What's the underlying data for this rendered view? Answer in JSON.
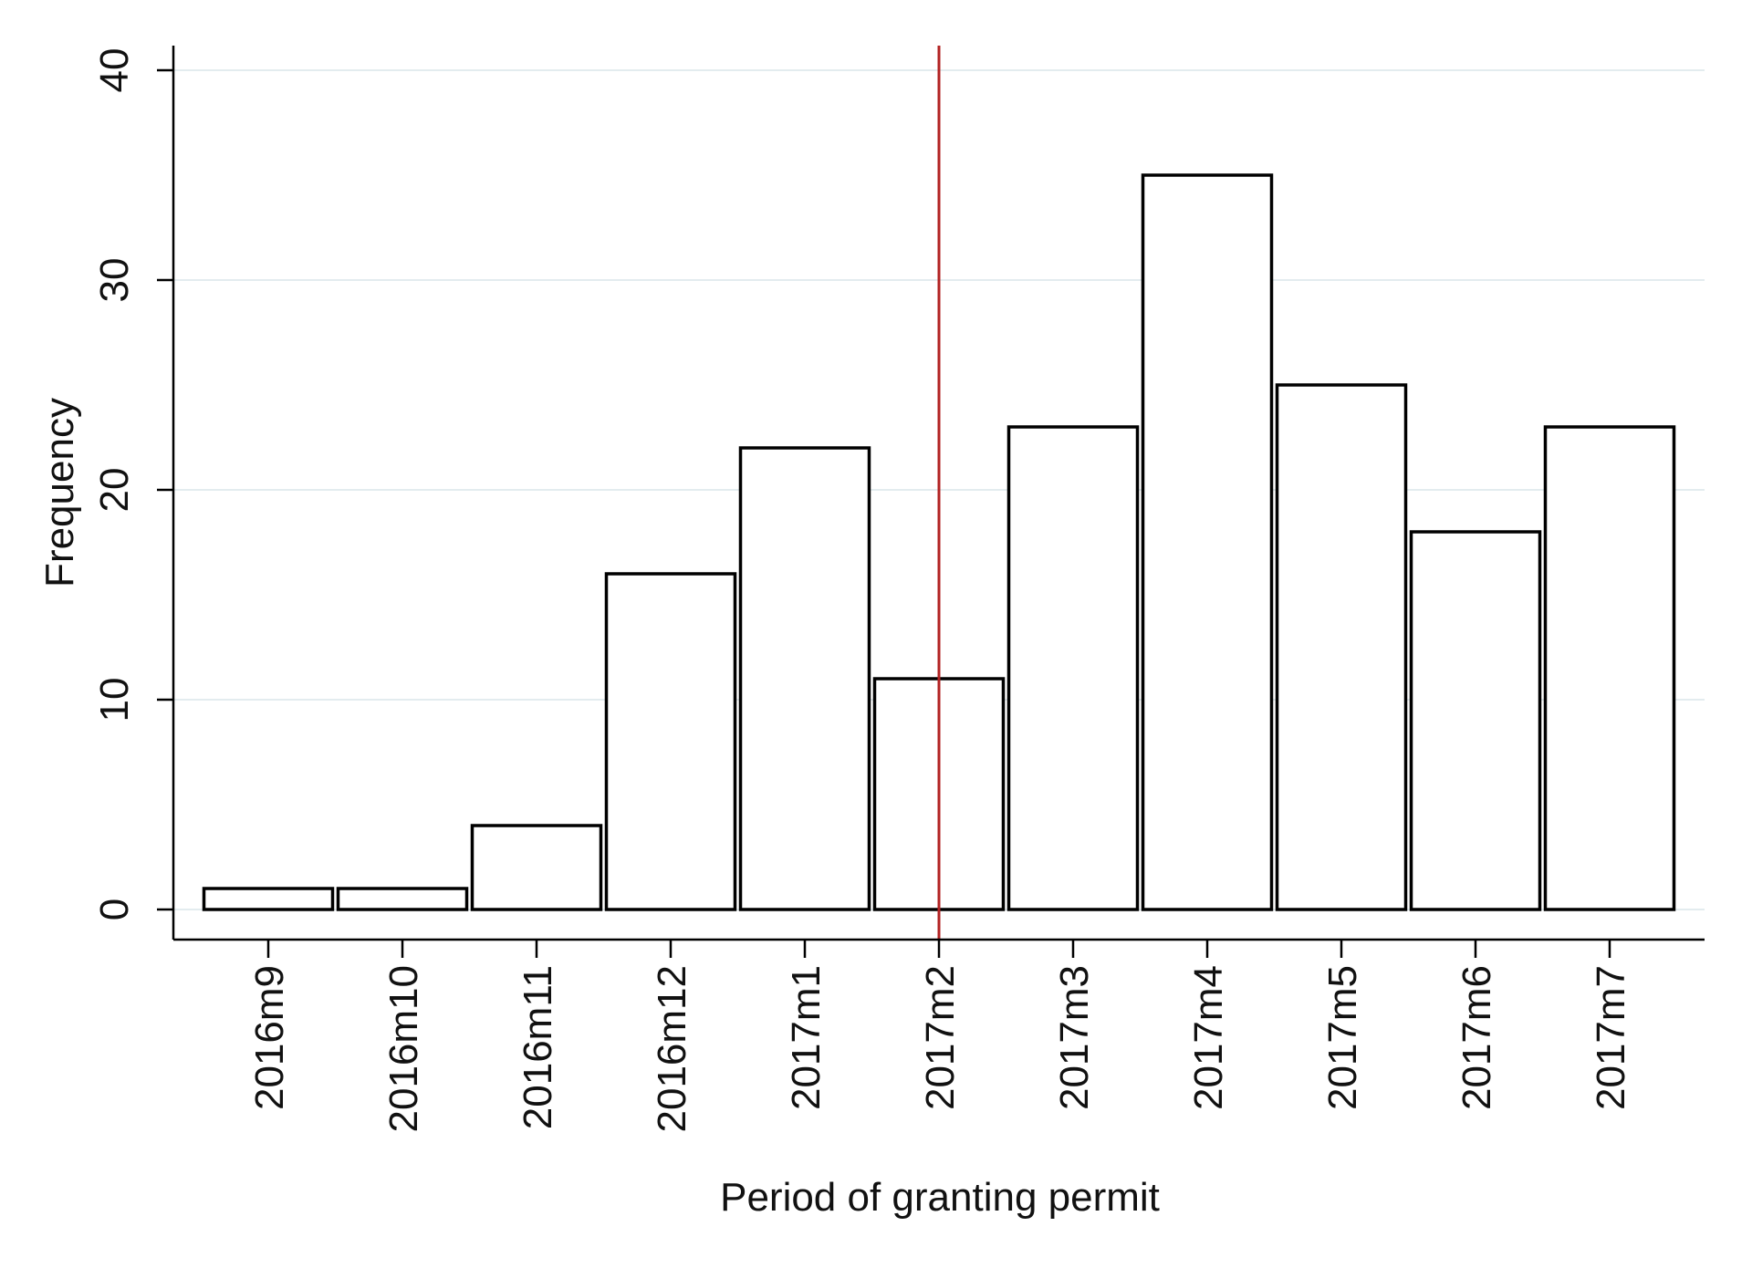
{
  "chart_data": {
    "type": "bar",
    "title": "",
    "xlabel": "Period of granting permit",
    "ylabel": "Frequency",
    "categories": [
      "2016m9",
      "2016m10",
      "2016m11",
      "2016m12",
      "2017m1",
      "2017m2",
      "2017m3",
      "2017m4",
      "2017m5",
      "2017m6",
      "2017m7"
    ],
    "values": [
      1,
      1,
      4,
      16,
      22,
      11,
      23,
      35,
      25,
      18,
      23
    ],
    "ylim": [
      0,
      40
    ],
    "yticks": [
      0,
      10,
      20,
      30,
      40
    ],
    "grid": true,
    "reference_line": {
      "x": "2017m2",
      "color": "#b22222"
    },
    "colors": {
      "bar_fill": "#ffffff",
      "bar_stroke": "#000000",
      "grid": "#e3ecef",
      "axis": "#000000"
    }
  }
}
